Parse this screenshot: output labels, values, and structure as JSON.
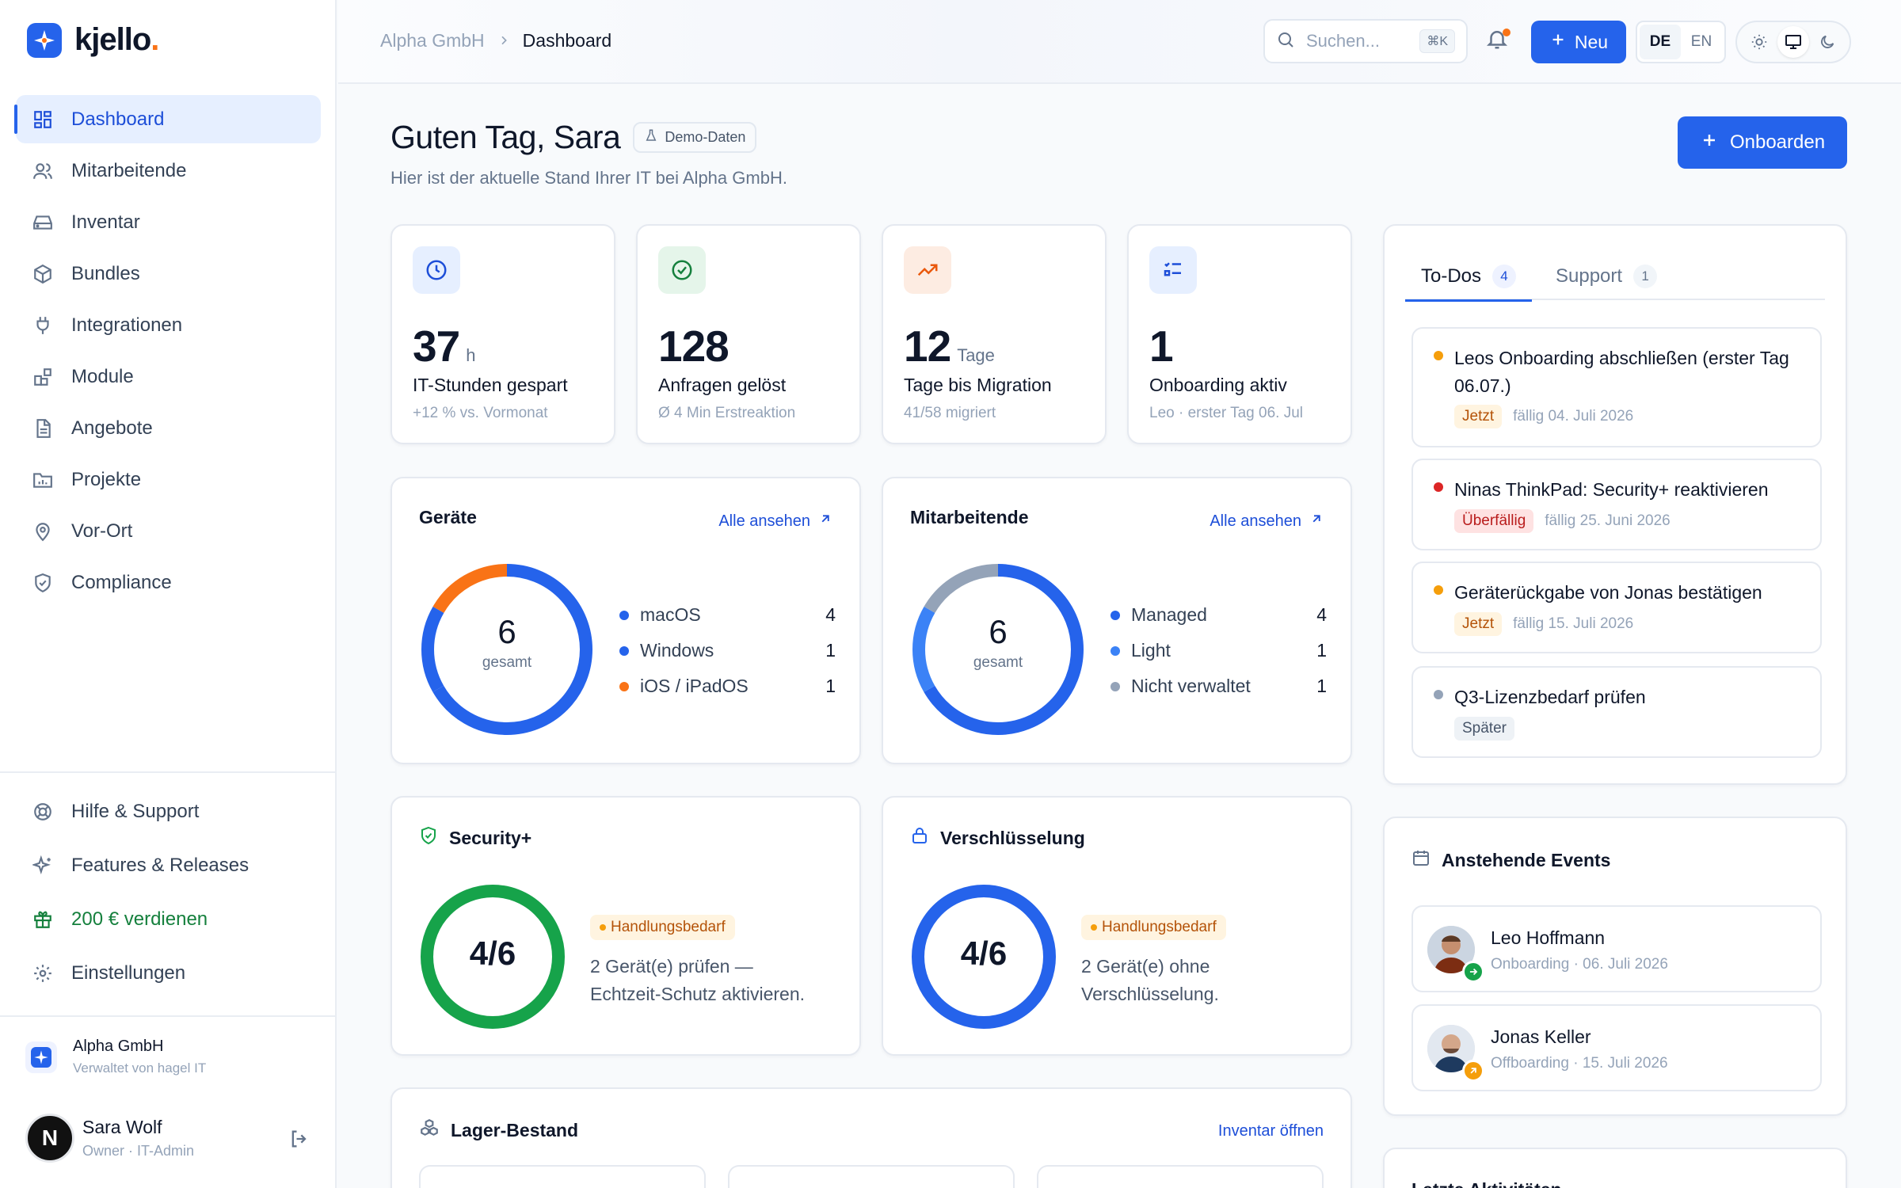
{
  "app": {
    "name": "kjello",
    "name_dot": "."
  },
  "sidebar": {
    "items": [
      {
        "label": "Dashboard",
        "icon": "grid-icon",
        "active": true
      },
      {
        "label": "Mitarbeitende",
        "icon": "users-icon"
      },
      {
        "label": "Inventar",
        "icon": "drive-icon"
      },
      {
        "label": "Bundles",
        "icon": "package-icon"
      },
      {
        "label": "Integrationen",
        "icon": "plug-icon"
      },
      {
        "label": "Module",
        "icon": "blocks-icon"
      },
      {
        "label": "Angebote",
        "icon": "document-icon"
      },
      {
        "label": "Projekte",
        "icon": "folder-icon"
      },
      {
        "label": "Vor-Ort",
        "icon": "map-pin-icon"
      },
      {
        "label": "Compliance",
        "icon": "shield-check-icon"
      }
    ],
    "bottom_items": [
      {
        "label": "Hilfe & Support",
        "icon": "lifebuoy-icon"
      },
      {
        "label": "Features & Releases",
        "icon": "sparkles-icon"
      },
      {
        "label": "200 € verdienen",
        "icon": "gift-icon"
      },
      {
        "label": "Einstellungen",
        "icon": "gear-icon"
      }
    ],
    "org": {
      "name": "Alpha GmbH",
      "sub": "Verwaltet von hagel IT"
    },
    "user": {
      "initial": "N",
      "name": "Sara Wolf",
      "role": "Owner · IT-Admin"
    }
  },
  "topbar": {
    "breadcrumb": [
      "Alpha GmbH",
      "Dashboard"
    ],
    "search_placeholder": "Suchen...",
    "search_shortcut": "⌘K",
    "new_label": "Neu",
    "languages": [
      "DE",
      "EN"
    ],
    "active_language": "DE"
  },
  "header": {
    "greeting": "Guten Tag, Sara",
    "demo_badge": "Demo-Daten",
    "subtitle": "Hier ist der aktuelle Stand Ihrer IT bei Alpha GmbH.",
    "onboard_label": "Onboarden"
  },
  "stats": [
    {
      "value": "37",
      "unit": "h",
      "label": "IT-Stunden gespart",
      "sub": "+12 % vs. Vormonat",
      "icon": "clock-icon",
      "color": "#1d4ed8",
      "bg": "#e6efff"
    },
    {
      "value": "128",
      "unit": "",
      "label": "Anfragen gelöst",
      "sub": "Ø 4 Min Erstreaktion",
      "icon": "check-circle-icon",
      "color": "#15803d",
      "bg": "#e5f5ea"
    },
    {
      "value": "12",
      "unit": "Tage",
      "label": "Tage bis Migration",
      "sub": "41/58 migriert",
      "icon": "trending-up-icon",
      "color": "#ea580c",
      "bg": "#fdece2"
    },
    {
      "value": "1",
      "unit": "",
      "label": "Onboarding aktiv",
      "sub": "Leo · erster Tag 06. Jul",
      "icon": "list-check-icon",
      "color": "#1d4ed8",
      "bg": "#e6efff"
    }
  ],
  "devices": {
    "title": "Geräte",
    "link": "Alle ansehen",
    "total": "6",
    "total_label": "gesamt",
    "legend": [
      {
        "label": "macOS",
        "count": 4,
        "color": "#2563eb"
      },
      {
        "label": "Windows",
        "count": 1,
        "color": "#2563eb"
      },
      {
        "label": "iOS / iPadOS",
        "count": 1,
        "color": "#f97316"
      }
    ]
  },
  "employees": {
    "title": "Mitarbeitende",
    "link": "Alle ansehen",
    "total": "6",
    "total_label": "gesamt",
    "legend": [
      {
        "label": "Managed",
        "count": 4,
        "color": "#2563eb"
      },
      {
        "label": "Light",
        "count": 1,
        "color": "#3b82f6"
      },
      {
        "label": "Nicht verwaltet",
        "count": 1,
        "color": "#94a3b8"
      }
    ]
  },
  "security": {
    "title": "Security+",
    "value": "4/6",
    "fraction": 0.6667,
    "status": "Handlungsbedarf",
    "text_line1": "2 Gerät(e) prüfen —",
    "text_line2": "Echtzeit-Schutz aktivieren.",
    "color": "#16a34a"
  },
  "encryption": {
    "title": "Verschlüsselung",
    "value": "4/6",
    "fraction": 0.6667,
    "status": "Handlungsbedarf",
    "text_line1": "2 Gerät(e) ohne",
    "text_line2": "Verschlüsselung.",
    "color": "#2563eb"
  },
  "stock": {
    "title": "Lager-Bestand",
    "link": "Inventar öffnen"
  },
  "tasks": {
    "tabs": [
      {
        "label": "To-Dos",
        "count": "4"
      },
      {
        "label": "Support",
        "count": "1"
      }
    ],
    "items": [
      {
        "title": "Leos Onboarding abschließen (erster Tag 06.07.)",
        "chip": "Jetzt",
        "chip_style": "orange",
        "due": "fällig 04. Juli 2026",
        "dot": "#f59e0b"
      },
      {
        "title": "Ninas ThinkPad: Security+ reaktivieren",
        "chip": "Überfällig",
        "chip_style": "red",
        "due": "fällig 25. Juni 2026",
        "dot": "#dc2626"
      },
      {
        "title": "Geräterückgabe von Jonas bestätigen",
        "chip": "Jetzt",
        "chip_style": "orange",
        "due": "fällig 15. Juli 2026",
        "dot": "#f59e0b"
      },
      {
        "title": "Q3-Lizenzbedarf prüfen",
        "chip": "Später",
        "chip_style": "grey",
        "due": "",
        "dot": "#94a3b8"
      }
    ]
  },
  "events": {
    "title": "Anstehende Events",
    "items": [
      {
        "name": "Leo Hoffmann",
        "sub": "Onboarding · 06. Juli 2026",
        "badge_color": "#16a34a"
      },
      {
        "name": "Jonas Keller",
        "sub": "Offboarding · 15. Juli 2026",
        "badge_color": "#f59e0b"
      }
    ]
  },
  "activity": {
    "title": "Letzte Aktivitäten"
  }
}
